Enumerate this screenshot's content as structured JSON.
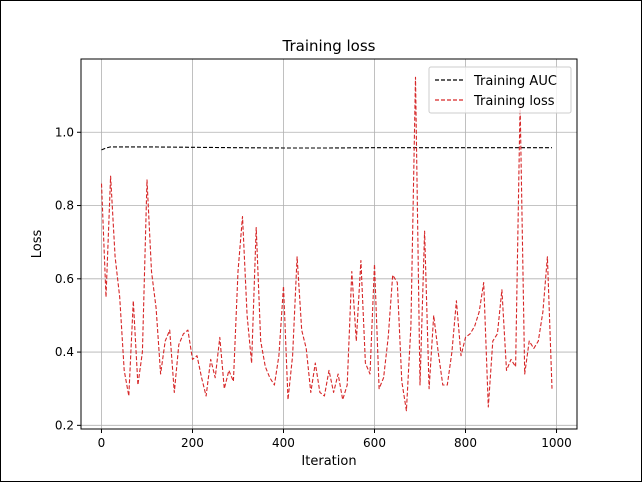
{
  "chart_data": {
    "type": "line",
    "title": "Training loss",
    "xlabel": "Iteration",
    "ylabel": "Loss",
    "xlim": [
      -45,
      1045
    ],
    "ylim": [
      0.19,
      1.2
    ],
    "xticks": [
      0,
      200,
      400,
      600,
      800,
      1000
    ],
    "yticks": [
      0.2,
      0.4,
      0.6,
      0.8,
      1.0
    ],
    "xtick_labels": [
      "0",
      "200",
      "400",
      "600",
      "800",
      "1000"
    ],
    "ytick_labels": [
      "0.2",
      "0.4",
      "0.6",
      "0.8",
      "1.0"
    ],
    "grid": true,
    "legend_position": "top-right",
    "series": [
      {
        "name": "Training AUC",
        "color": "#000000",
        "dash": "dashed",
        "x": [
          0,
          10,
          20,
          50,
          100,
          200,
          300,
          400,
          500,
          600,
          700,
          800,
          900,
          990
        ],
        "y": [
          0.952,
          0.957,
          0.96,
          0.96,
          0.96,
          0.959,
          0.958,
          0.957,
          0.957,
          0.958,
          0.958,
          0.958,
          0.958,
          0.958
        ]
      },
      {
        "name": "Training loss",
        "color": "#d62728",
        "dash": "dashed",
        "x": [
          0,
          10,
          20,
          30,
          40,
          50,
          60,
          70,
          80,
          90,
          100,
          110,
          120,
          130,
          140,
          150,
          160,
          170,
          180,
          190,
          200,
          210,
          220,
          230,
          240,
          250,
          260,
          270,
          280,
          290,
          300,
          310,
          320,
          330,
          340,
          350,
          360,
          370,
          380,
          390,
          400,
          410,
          420,
          430,
          440,
          450,
          460,
          470,
          480,
          490,
          500,
          510,
          520,
          530,
          540,
          550,
          560,
          570,
          580,
          590,
          600,
          610,
          620,
          630,
          640,
          650,
          660,
          670,
          680,
          690,
          700,
          710,
          720,
          730,
          740,
          750,
          760,
          770,
          780,
          790,
          800,
          810,
          820,
          830,
          840,
          850,
          860,
          870,
          880,
          890,
          900,
          910,
          920,
          930,
          940,
          950,
          960,
          970,
          980,
          990
        ],
        "y": [
          0.86,
          0.55,
          0.88,
          0.66,
          0.55,
          0.35,
          0.28,
          0.54,
          0.31,
          0.4,
          0.87,
          0.62,
          0.52,
          0.34,
          0.43,
          0.46,
          0.29,
          0.42,
          0.45,
          0.46,
          0.38,
          0.39,
          0.33,
          0.28,
          0.38,
          0.33,
          0.44,
          0.3,
          0.35,
          0.32,
          0.62,
          0.77,
          0.5,
          0.37,
          0.74,
          0.43,
          0.36,
          0.33,
          0.31,
          0.39,
          0.58,
          0.27,
          0.39,
          0.66,
          0.46,
          0.41,
          0.29,
          0.37,
          0.29,
          0.28,
          0.35,
          0.29,
          0.34,
          0.27,
          0.31,
          0.62,
          0.43,
          0.65,
          0.37,
          0.34,
          0.64,
          0.3,
          0.33,
          0.44,
          0.61,
          0.59,
          0.32,
          0.24,
          0.47,
          1.15,
          0.31,
          0.73,
          0.3,
          0.5,
          0.4,
          0.31,
          0.31,
          0.4,
          0.54,
          0.39,
          0.44,
          0.45,
          0.47,
          0.51,
          0.59,
          0.25,
          0.43,
          0.45,
          0.57,
          0.35,
          0.38,
          0.36,
          1.08,
          0.34,
          0.43,
          0.41,
          0.43,
          0.51,
          0.66,
          0.3
        ]
      }
    ]
  }
}
